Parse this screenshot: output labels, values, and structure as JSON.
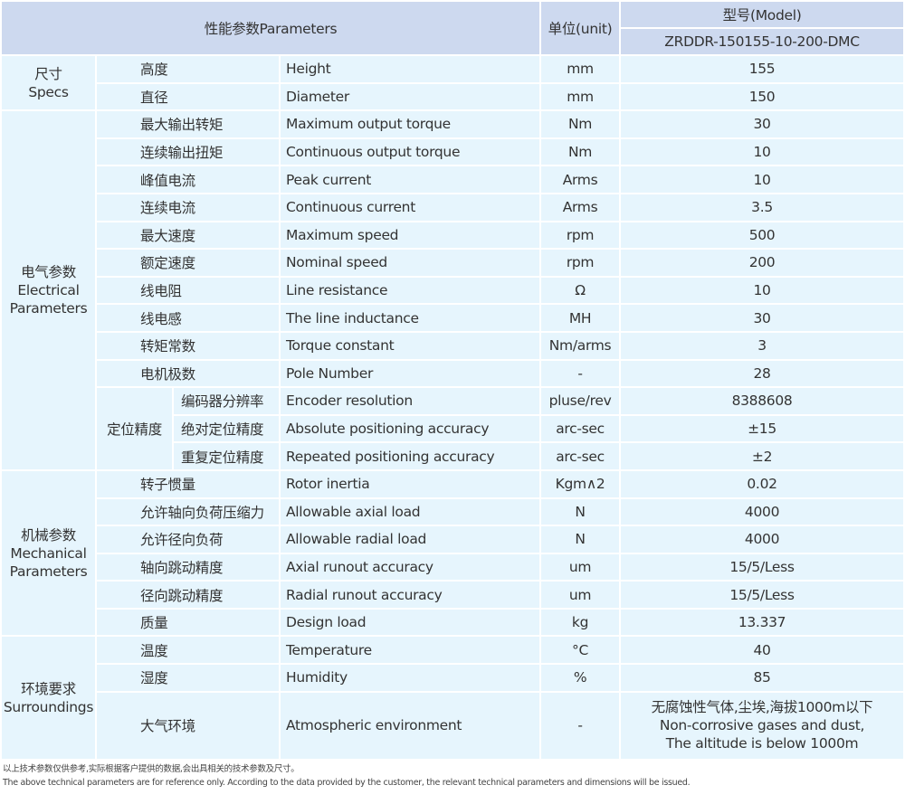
{
  "header": {
    "parameters": "性能参数Parameters",
    "unit": "单位(unit)",
    "model_label": "型号(Model)",
    "model": "ZRDDR-150155-10-200-DMC"
  },
  "groups": [
    {
      "cn": "尺寸",
      "en": "Specs",
      "rows": [
        {
          "cn": "高度",
          "en": "Height",
          "unit": "mm",
          "value": "155"
        },
        {
          "cn": "直径",
          "en": "Diameter",
          "unit": "mm",
          "value": "150"
        }
      ]
    },
    {
      "cn": "电气参数",
      "en": "Electrical Parameters",
      "rows": [
        {
          "cn": "最大输出转矩",
          "en": "Maximum output torque",
          "unit": "Nm",
          "value": "30"
        },
        {
          "cn": "连续输出扭矩",
          "en": "Continuous output torque",
          "unit": "Nm",
          "value": "10"
        },
        {
          "cn": "峰值电流",
          "en": "Peak current",
          "unit": "Arms",
          "value": "10"
        },
        {
          "cn": "连续电流",
          "en": "Continuous current",
          "unit": "Arms",
          "value": "3.5"
        },
        {
          "cn": "最大速度",
          "en": "Maximum speed",
          "unit": "rpm",
          "value": "500"
        },
        {
          "cn": "额定速度",
          "en": "Nominal speed",
          "unit": "rpm",
          "value": "200"
        },
        {
          "cn": "线电阻",
          "en": "Line resistance",
          "unit": "Ω",
          "value": "10"
        },
        {
          "cn": "线电感",
          "en": "The line inductance",
          "unit": "MH",
          "value": "30"
        },
        {
          "cn": "转矩常数",
          "en": "Torque constant",
          "unit": "Nm/arms",
          "value": "3"
        },
        {
          "cn": "电机极数",
          "en": "Pole Number",
          "unit": "-",
          "value": "28"
        }
      ],
      "subgroup": {
        "cn": "定位精度",
        "rows": [
          {
            "cn": "编码器分辨率",
            "en": "Encoder resolution",
            "unit": "pluse/rev",
            "value": "8388608"
          },
          {
            "cn": "绝对定位精度",
            "en": "Absolute positioning accuracy",
            "unit": "arc-sec",
            "value": "±15"
          },
          {
            "cn": "重复定位精度",
            "en": "Repeated positioning accuracy",
            "unit": "arc-sec",
            "value": "±2"
          }
        ]
      }
    },
    {
      "cn": "机械参数",
      "en": "Mechanical Parameters",
      "rows": [
        {
          "cn": "转子惯量",
          "en": "Rotor inertia",
          "unit": "Kgm∧2",
          "value": "0.02"
        },
        {
          "cn": "允许轴向负荷压缩力",
          "en": "Allowable axial load",
          "unit": "N",
          "value": "4000"
        },
        {
          "cn": "允许径向负荷",
          "en": "Allowable radial load",
          "unit": "N",
          "value": "4000"
        },
        {
          "cn": "轴向跳动精度",
          "en": "Axial runout accuracy",
          "unit": "um",
          "value": "15/5/Less"
        },
        {
          "cn": "径向跳动精度",
          "en": "Radial runout accuracy",
          "unit": "um",
          "value": "15/5/Less"
        },
        {
          "cn": "质量",
          "en": "Design load",
          "unit": "kg",
          "value": "13.337"
        }
      ]
    },
    {
      "cn": "环境要求",
      "en": "Surroundings",
      "rows": [
        {
          "cn": "温度",
          "en": "Temperature",
          "unit": "°C",
          "value": "40"
        },
        {
          "cn": "湿度",
          "en": "Humidity",
          "unit": "%",
          "value": "85"
        },
        {
          "cn": "大气环境",
          "en": "Atmospheric environment",
          "unit": "-",
          "value_lines": [
            "无腐蚀性气体,尘埃,海拔1000m以下",
            "Non-corrosive gases and dust,",
            "The altitude is below 1000m"
          ]
        }
      ]
    }
  ],
  "footnote": {
    "cn": "以上技术参数仅供参考,实际根据客户提供的数据,会出具相关的技术参数及尺寸。",
    "en": "The above technical parameters are for reference only. According to the data provided by the customer, the relevant technical parameters and dimensions will be issued."
  }
}
